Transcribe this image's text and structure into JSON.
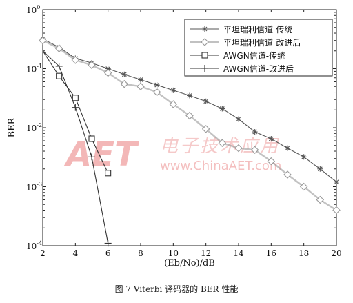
{
  "chart_data": {
    "type": "line",
    "xlabel": "(Eb/No)/dB",
    "ylabel": "BER",
    "xlim": [
      2,
      20
    ],
    "ylim_log10": [
      -4,
      0
    ],
    "yscale": "log",
    "x_ticks": [
      "2",
      "4",
      "6",
      "8",
      "10",
      "12",
      "14",
      "16",
      "18",
      "20"
    ],
    "y_ticks": [
      {
        "base": "10",
        "exp": "-4"
      },
      {
        "base": "10",
        "exp": "-3"
      },
      {
        "base": "10",
        "exp": "-2"
      },
      {
        "base": "10",
        "exp": "-1"
      },
      {
        "base": "10",
        "exp": "0"
      }
    ],
    "legend_position": "top-right",
    "grid": false,
    "series": [
      {
        "name": "平坦瑞利信道-传统",
        "marker": "star",
        "color": "#555555",
        "x": [
          2,
          3,
          4,
          5,
          6,
          7,
          8,
          9,
          10,
          11,
          12,
          13,
          14,
          15,
          16,
          17,
          18,
          19,
          20
        ],
        "y": [
          0.32,
          0.23,
          0.15,
          0.125,
          0.1,
          0.08,
          0.065,
          0.053,
          0.043,
          0.035,
          0.028,
          0.021,
          0.014,
          0.0085,
          0.0065,
          0.0045,
          0.0032,
          0.002,
          0.0012
        ]
      },
      {
        "name": "平坦瑞利信道-改进后",
        "marker": "diamond",
        "color": "#999999",
        "x": [
          2,
          3,
          4,
          5,
          6,
          7,
          8,
          9,
          10,
          11,
          12,
          13,
          14,
          15,
          16,
          17,
          18,
          19,
          20
        ],
        "y": [
          0.3,
          0.22,
          0.14,
          0.115,
          0.085,
          0.055,
          0.05,
          0.04,
          0.025,
          0.016,
          0.0095,
          0.0055,
          0.0045,
          0.0042,
          0.0027,
          0.0016,
          0.001,
          0.0006,
          0.0004
        ]
      },
      {
        "name": "AWGN信道-传统",
        "marker": "square",
        "color": "#333333",
        "x": [
          2,
          3,
          4,
          5,
          6
        ],
        "y": [
          0.2,
          0.075,
          0.032,
          0.0065,
          0.0017
        ]
      },
      {
        "name": "AWGN信道-改进后",
        "marker": "plus",
        "color": "#333333",
        "x": [
          2,
          3,
          4,
          5,
          6
        ],
        "y": [
          0.2,
          0.11,
          0.022,
          0.0032,
          0.00011
        ]
      }
    ]
  },
  "caption": "图 7  Viterbi 译码器的 BER 性能",
  "watermark": {
    "logo_text": "AET",
    "cn_text": "电子技术应用",
    "url_text": "www.ChinaAET.com",
    "color": "#f2b0b0"
  }
}
